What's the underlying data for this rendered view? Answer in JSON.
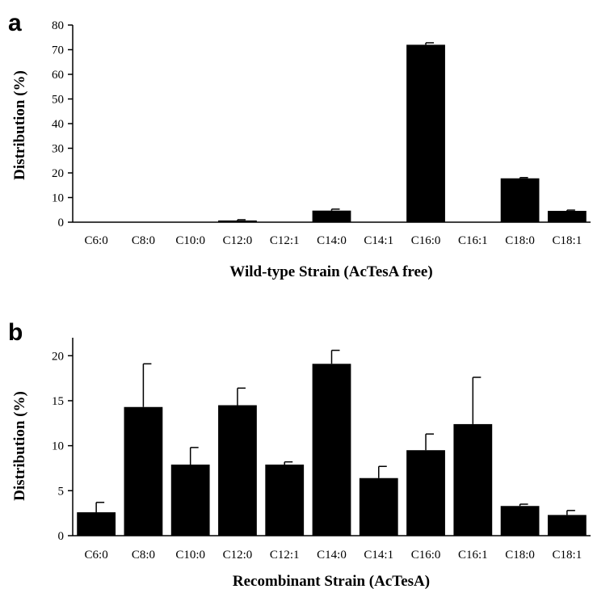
{
  "chart_data": [
    {
      "type": "bar",
      "panel_label": "a",
      "xlabel": "Wild-type Strain (AcTesA free)",
      "ylabel": "Distribution (%)",
      "ylim": [
        0,
        80
      ],
      "yticks": [
        0,
        10,
        20,
        30,
        40,
        50,
        60,
        70,
        80
      ],
      "categories": [
        "C6:0",
        "C8:0",
        "C10:0",
        "C12:0",
        "C12:1",
        "C14:0",
        "C14:1",
        "C16:0",
        "C16:1",
        "C18:0",
        "C18:1"
      ],
      "values": [
        0,
        0,
        0,
        0.7,
        0,
        4.7,
        0,
        72.0,
        0,
        17.8,
        4.6
      ],
      "errors": [
        0,
        0,
        0,
        0.3,
        0,
        0.6,
        0,
        0.8,
        0,
        0.3,
        0.3
      ],
      "bar_color": "#000000",
      "grid": false
    },
    {
      "type": "bar",
      "panel_label": "b",
      "xlabel": "Recombinant Strain (AcTesA)",
      "ylabel": "Distribution (%)",
      "ylim": [
        0,
        22
      ],
      "yticks": [
        0,
        5,
        10,
        15,
        20
      ],
      "categories": [
        "C6:0",
        "C8:0",
        "C10:0",
        "C12:0",
        "C12:1",
        "C14:0",
        "C14:1",
        "C16:0",
        "C16:1",
        "C18:0",
        "C18:1"
      ],
      "values": [
        2.6,
        14.3,
        7.9,
        14.5,
        7.9,
        19.1,
        6.4,
        9.5,
        12.4,
        3.3,
        2.3
      ],
      "errors": [
        1.1,
        4.8,
        1.9,
        1.9,
        0.3,
        1.5,
        1.3,
        1.8,
        5.2,
        0.2,
        0.5
      ],
      "bar_color": "#000000",
      "grid": false
    }
  ]
}
